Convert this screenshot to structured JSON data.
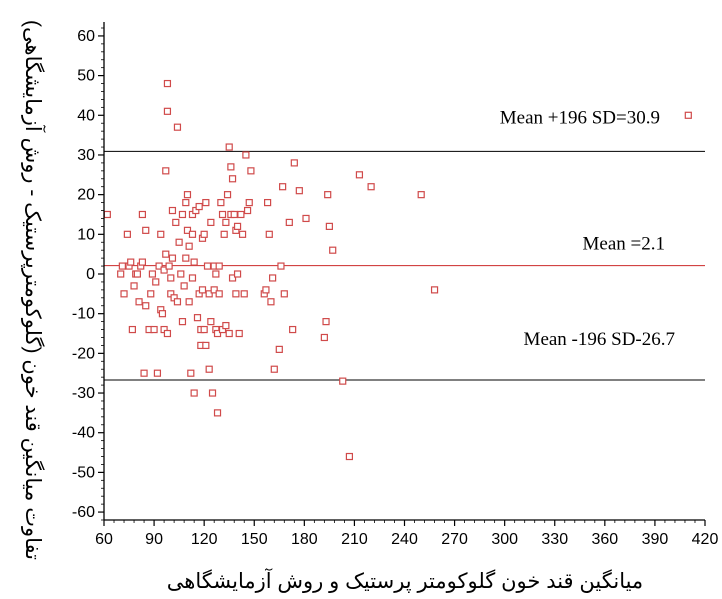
{
  "chart_data": {
    "type": "scatter",
    "title": "",
    "xlabel": "میانگین قند خون گلوکومتر پرستیک و روش آزمایشگاهی",
    "ylabel": "تفاوت میانگین قند خون (گلوکومترپرستیک - روش آزمایشگاهی)",
    "xlim": [
      60,
      420
    ],
    "ylim": [
      -62,
      62
    ],
    "xticks": [
      60,
      90,
      120,
      150,
      180,
      210,
      240,
      270,
      300,
      330,
      360,
      390,
      420
    ],
    "yticks": [
      60,
      50,
      40,
      30,
      20,
      10,
      0,
      -10,
      -20,
      -30,
      -40,
      -50,
      -60
    ],
    "grid": false,
    "marker_color": "#d04a4a",
    "reference_lines": [
      {
        "y": 30.9,
        "label": "Mean +196 SD=30.9",
        "color": "#000000"
      },
      {
        "y": 2.1,
        "label": "Mean =2.1",
        "color": "#cc2a2a"
      },
      {
        "y": -26.7,
        "label": "Mean -196 SD-26.7",
        "color": "#000000"
      }
    ],
    "points": [
      [
        62,
        15
      ],
      [
        70,
        0
      ],
      [
        71,
        2
      ],
      [
        72,
        -5
      ],
      [
        74,
        10
      ],
      [
        75,
        2
      ],
      [
        76,
        3
      ],
      [
        77,
        -14
      ],
      [
        78,
        -3
      ],
      [
        79,
        0
      ],
      [
        80,
        0
      ],
      [
        81,
        -7
      ],
      [
        82,
        2
      ],
      [
        83,
        15
      ],
      [
        83,
        3
      ],
      [
        84,
        -25
      ],
      [
        85,
        11
      ],
      [
        85,
        -8
      ],
      [
        87,
        -14
      ],
      [
        88,
        -5
      ],
      [
        89,
        0
      ],
      [
        90,
        -14
      ],
      [
        91,
        -2
      ],
      [
        92,
        -25
      ],
      [
        93,
        2
      ],
      [
        94,
        10
      ],
      [
        94,
        -9
      ],
      [
        95,
        -10
      ],
      [
        96,
        1
      ],
      [
        96,
        -14
      ],
      [
        97,
        26
      ],
      [
        97,
        5
      ],
      [
        98,
        48
      ],
      [
        98,
        41
      ],
      [
        98,
        -15
      ],
      [
        99,
        2
      ],
      [
        100,
        -1
      ],
      [
        100,
        -5
      ],
      [
        101,
        16
      ],
      [
        101,
        4
      ],
      [
        102,
        -6
      ],
      [
        103,
        13
      ],
      [
        104,
        37
      ],
      [
        104,
        -7
      ],
      [
        105,
        8
      ],
      [
        106,
        0
      ],
      [
        107,
        15
      ],
      [
        107,
        -12
      ],
      [
        108,
        -3
      ],
      [
        109,
        18
      ],
      [
        109,
        4
      ],
      [
        110,
        20
      ],
      [
        110,
        11
      ],
      [
        111,
        7
      ],
      [
        111,
        -7
      ],
      [
        112,
        -25
      ],
      [
        113,
        15
      ],
      [
        113,
        10
      ],
      [
        113,
        -1
      ],
      [
        114,
        -30
      ],
      [
        114,
        3
      ],
      [
        115,
        16
      ],
      [
        116,
        -11
      ],
      [
        117,
        17
      ],
      [
        117,
        -5
      ],
      [
        118,
        -14
      ],
      [
        118,
        -18
      ],
      [
        119,
        -4
      ],
      [
        119,
        9
      ],
      [
        120,
        -14
      ],
      [
        120,
        10
      ],
      [
        121,
        -18
      ],
      [
        121,
        18
      ],
      [
        122,
        2
      ],
      [
        123,
        -24
      ],
      [
        123,
        -5
      ],
      [
        124,
        13
      ],
      [
        124,
        -12
      ],
      [
        125,
        -30
      ],
      [
        126,
        2
      ],
      [
        126,
        -4
      ],
      [
        127,
        0
      ],
      [
        127,
        -14
      ],
      [
        128,
        -35
      ],
      [
        128,
        -15
      ],
      [
        129,
        2
      ],
      [
        129,
        -5
      ],
      [
        130,
        18
      ],
      [
        131,
        -14
      ],
      [
        131,
        15
      ],
      [
        132,
        10
      ],
      [
        133,
        -13
      ],
      [
        133,
        13
      ],
      [
        134,
        20
      ],
      [
        135,
        32
      ],
      [
        135,
        -15
      ],
      [
        136,
        15
      ],
      [
        136,
        27
      ],
      [
        137,
        -1
      ],
      [
        137,
        24
      ],
      [
        138,
        15
      ],
      [
        139,
        -5
      ],
      [
        139,
        11
      ],
      [
        140,
        12
      ],
      [
        140,
        0
      ],
      [
        141,
        -15
      ],
      [
        142,
        15
      ],
      [
        143,
        10
      ],
      [
        144,
        -5
      ],
      [
        145,
        30
      ],
      [
        146,
        16
      ],
      [
        147,
        18
      ],
      [
        148,
        26
      ],
      [
        156,
        -5
      ],
      [
        157,
        -4
      ],
      [
        158,
        18
      ],
      [
        159,
        10
      ],
      [
        160,
        -7
      ],
      [
        161,
        -1
      ],
      [
        162,
        -24
      ],
      [
        165,
        -19
      ],
      [
        166,
        2
      ],
      [
        167,
        22
      ],
      [
        168,
        -5
      ],
      [
        171,
        13
      ],
      [
        173,
        -14
      ],
      [
        174,
        28
      ],
      [
        177,
        21
      ],
      [
        181,
        14
      ],
      [
        192,
        -16
      ],
      [
        193,
        -12
      ],
      [
        194,
        20
      ],
      [
        195,
        12
      ],
      [
        197,
        6
      ],
      [
        203,
        -27
      ],
      [
        207,
        -46
      ],
      [
        213,
        25
      ],
      [
        220,
        22
      ],
      [
        250,
        20
      ],
      [
        258,
        -4
      ],
      [
        410,
        40
      ]
    ]
  }
}
